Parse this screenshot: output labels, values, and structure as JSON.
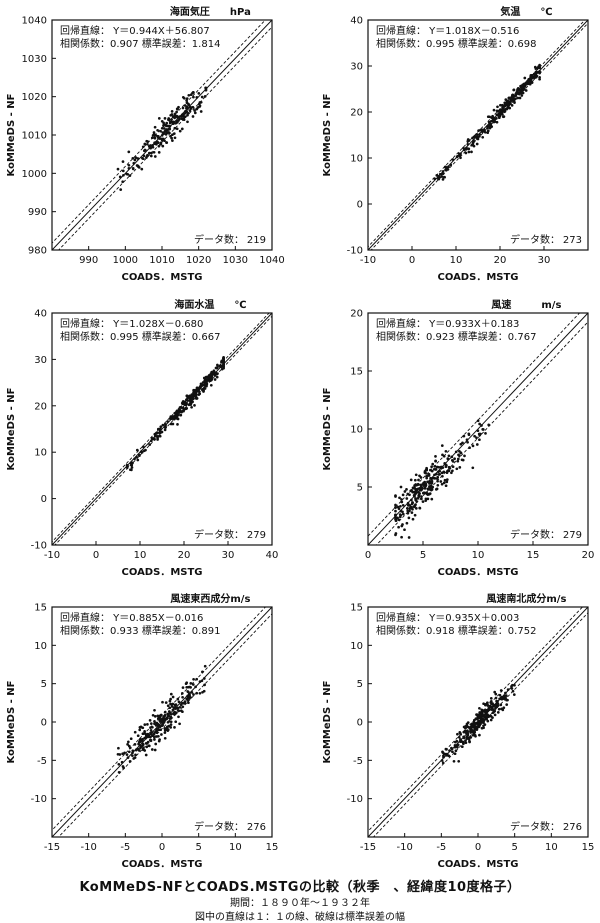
{
  "labels": {
    "regression_prefix": "回帰直線：",
    "correlation_prefix": "相関係数：",
    "stderr_prefix": "標準誤差：",
    "count_prefix": "データ数："
  },
  "caption": {
    "title": "KoMMeDS-NFとCOADS.MSTGの比較（秋季　、経緯度10度格子）",
    "period": "期間：１８９０年～１９３２年",
    "note": "図中の直線は１：１の線、破線は標準誤差の幅"
  },
  "chart_data": [
    {
      "type": "scatter",
      "title": "海面気圧　　hPa",
      "xlabel": "COADS．MSTG",
      "ylabel": "KoMMeDS - NF",
      "xlim": [
        980,
        1040
      ],
      "ylim": [
        980,
        1040
      ],
      "xticks": [
        990,
        1000,
        1010,
        1020,
        1030,
        1040
      ],
      "yticks": [
        980,
        990,
        1000,
        1010,
        1020,
        1030,
        1040
      ],
      "regression_text": "Y＝0.944X＋56.807",
      "correlation": "0.907",
      "stderr": "1.814",
      "stderr_value": 1.814,
      "count": "219",
      "slope": 0.944,
      "intercept": 56.807,
      "cluster": {
        "xmin": 998,
        "xmax": 1022,
        "n": 219,
        "center": 1012
      },
      "grid": false
    },
    {
      "type": "scatter",
      "title": "気温　　℃",
      "xlabel": "COADS．MSTG",
      "ylabel": "KoMMeDS - NF",
      "xlim": [
        -10,
        40
      ],
      "ylim": [
        -10,
        40
      ],
      "xticks": [
        -10,
        0,
        10,
        20,
        30
      ],
      "yticks": [
        -10,
        0,
        10,
        20,
        30,
        40
      ],
      "regression_text": "Y＝1.018X－0.516",
      "correlation": "0.995",
      "stderr": "0.698",
      "stderr_value": 0.698,
      "count": "273",
      "slope": 1.018,
      "intercept": -0.516,
      "cluster": {
        "xmin": 5,
        "xmax": 29,
        "n": 273,
        "center": 22
      },
      "grid": false
    },
    {
      "type": "scatter",
      "title": "海面水温　　℃",
      "xlabel": "COADS．MSTG",
      "ylabel": "KoMMeDS - NF",
      "xlim": [
        -10,
        40
      ],
      "ylim": [
        -10,
        40
      ],
      "xticks": [
        -10,
        0,
        10,
        20,
        30,
        40
      ],
      "yticks": [
        -10,
        0,
        10,
        20,
        30,
        40
      ],
      "regression_text": "Y＝1.028X－0.680",
      "correlation": "0.995",
      "stderr": "0.667",
      "stderr_value": 0.667,
      "count": "279",
      "slope": 1.028,
      "intercept": -0.68,
      "cluster": {
        "xmin": 7,
        "xmax": 29,
        "n": 279,
        "center": 23
      },
      "grid": false
    },
    {
      "type": "scatter",
      "title": "風速　　　m/s",
      "xlabel": "COADS．MSTG",
      "ylabel": "KoMMeDS - NF",
      "xlim": [
        0,
        20
      ],
      "ylim": [
        0,
        20
      ],
      "xticks": [
        0,
        5,
        10,
        15,
        20
      ],
      "yticks": [
        5,
        10,
        15,
        20
      ],
      "regression_text": "Y＝0.933X＋0.183",
      "correlation": "0.923",
      "stderr": "0.767",
      "stderr_value": 0.767,
      "count": "279",
      "slope": 0.933,
      "intercept": 0.183,
      "cluster": {
        "xmin": 2.5,
        "xmax": 11,
        "n": 279,
        "center": 5
      },
      "grid": false
    },
    {
      "type": "scatter",
      "title": "風速東西成分m/s",
      "xlabel": "COADS．MSTG",
      "ylabel": "KoMMeDS - NF",
      "xlim": [
        -15,
        15
      ],
      "ylim": [
        -15,
        15
      ],
      "xticks": [
        -15,
        -10,
        -5,
        0,
        5,
        10,
        15
      ],
      "yticks": [
        -10,
        -5,
        0,
        5,
        10,
        15
      ],
      "regression_text": "Y＝0.885X－0.016",
      "correlation": "0.933",
      "stderr": "0.891",
      "stderr_value": 0.891,
      "count": "276",
      "slope": 0.885,
      "intercept": -0.016,
      "cluster": {
        "xmin": -6,
        "xmax": 6,
        "n": 276,
        "center": 0
      },
      "grid": false
    },
    {
      "type": "scatter",
      "title": "風速南北成分m/s",
      "xlabel": "COADS．MSTG",
      "ylabel": "KoMMeDS - NF",
      "xlim": [
        -15,
        15
      ],
      "ylim": [
        -15,
        15
      ],
      "xticks": [
        -15,
        -10,
        -5,
        0,
        5,
        10,
        15
      ],
      "yticks": [
        -10,
        -5,
        0,
        5,
        10,
        15
      ],
      "regression_text": "Y＝0.935X＋0.003",
      "correlation": "0.918",
      "stderr": "0.752",
      "stderr_value": 0.752,
      "count": "276",
      "slope": 0.935,
      "intercept": 0.003,
      "cluster": {
        "xmin": -5,
        "xmax": 5,
        "n": 276,
        "center": 0
      },
      "grid": false
    }
  ]
}
